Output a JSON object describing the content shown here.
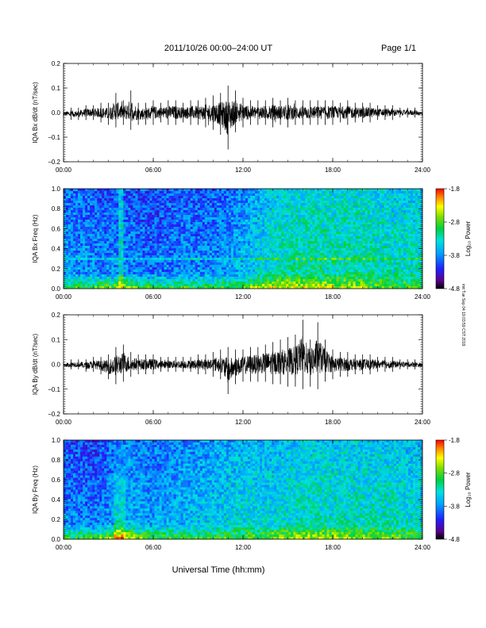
{
  "header": {
    "title": "2011/10/26  00:00–24:00 UT",
    "page": "Page 1/1"
  },
  "side_note": "rmt Tue Sep 04 19:03:59 CST 2019",
  "xlabel": "Universal Time (hh:mm)",
  "x_ticks": [
    "00:00",
    "06:00",
    "12:00",
    "18:00",
    "24:00"
  ],
  "colorbar": {
    "label": "Log₁₀ Power",
    "ticks": [
      "-1.8",
      "-2.8",
      "-3.8",
      "-4.8"
    ],
    "range": [
      -4.8,
      -1.8
    ]
  },
  "chart_data": [
    {
      "type": "line",
      "id": "bx-waveform",
      "ylabel": "IQA Bx dB/dt (nT/sec)",
      "ylim": [
        -0.2,
        0.2
      ],
      "yticks": [
        "0.2",
        "0.1",
        "0.0",
        "−0.1",
        "−0.2"
      ],
      "xlim": [
        0,
        24
      ],
      "x": [
        0,
        0.5,
        1,
        1.5,
        2,
        2.5,
        3,
        3.5,
        4,
        4.5,
        5,
        5.5,
        6,
        6.5,
        7,
        7.5,
        8,
        8.5,
        9,
        9.5,
        10,
        10.5,
        11,
        11.5,
        12,
        12.5,
        13,
        13.5,
        14,
        14.5,
        15,
        15.5,
        16,
        16.5,
        17,
        17.5,
        18,
        18.5,
        19,
        19.5,
        20,
        20.5,
        21,
        21.5,
        22,
        22.5,
        23,
        23.5,
        24
      ],
      "y_max": [
        0.01,
        0.02,
        0.02,
        0.03,
        0.03,
        0.04,
        0.04,
        0.08,
        0.05,
        0.09,
        0.04,
        0.04,
        0.05,
        0.04,
        0.05,
        0.05,
        0.04,
        0.05,
        0.05,
        0.06,
        0.07,
        0.08,
        0.11,
        0.09,
        0.06,
        0.05,
        0.05,
        0.05,
        0.06,
        0.05,
        0.06,
        0.05,
        0.05,
        0.05,
        0.05,
        0.05,
        0.05,
        0.04,
        0.05,
        0.04,
        0.04,
        0.04,
        0.03,
        0.03,
        0.03,
        0.02,
        0.02,
        0.02,
        0.01
      ],
      "y_min": [
        -0.02,
        -0.03,
        -0.03,
        -0.03,
        -0.03,
        -0.04,
        -0.05,
        -0.06,
        -0.05,
        -0.07,
        -0.05,
        -0.05,
        -0.05,
        -0.04,
        -0.05,
        -0.05,
        -0.04,
        -0.05,
        -0.05,
        -0.06,
        -0.07,
        -0.09,
        -0.15,
        -0.08,
        -0.06,
        -0.05,
        -0.05,
        -0.05,
        -0.06,
        -0.05,
        -0.06,
        -0.05,
        -0.05,
        -0.05,
        -0.05,
        -0.05,
        -0.05,
        -0.04,
        -0.05,
        -0.04,
        -0.04,
        -0.04,
        -0.03,
        -0.03,
        -0.03,
        -0.02,
        -0.02,
        -0.02,
        -0.02
      ]
    },
    {
      "type": "heatmap",
      "id": "bx-spectrogram",
      "ylabel": "IQA Bx Freq (Hz)",
      "ylim": [
        0.0,
        1.0
      ],
      "yticks": [
        "1.0",
        "0.8",
        "0.6",
        "0.4",
        "0.2",
        "0.0"
      ],
      "xlim": [
        0,
        24
      ],
      "hours": [
        0,
        2,
        4,
        6,
        8,
        10,
        12,
        14,
        16,
        18,
        20,
        22,
        24
      ],
      "background_log_power": [
        -3.7,
        -3.8,
        -3.8,
        -3.9,
        -3.8,
        -3.8,
        -3.6,
        -3.3,
        -3.2,
        -3.2,
        -3.2,
        -3.3,
        -3.3
      ],
      "lowfreq_log_power": [
        -2.9,
        -2.8,
        -2.6,
        -2.9,
        -2.9,
        -2.9,
        -2.7,
        -2.4,
        -2.4,
        -2.5,
        -2.6,
        -2.8,
        -2.8
      ],
      "features": [
        "vertical line near 03:50",
        "horizontal line near 0.3 Hz"
      ]
    },
    {
      "type": "line",
      "id": "by-waveform",
      "ylabel": "IQA By dB/dt (nT/sec)",
      "ylim": [
        -0.2,
        0.2
      ],
      "yticks": [
        "0.2",
        "0.1",
        "0.0",
        "−0.1",
        "−0.2"
      ],
      "xlim": [
        0,
        24
      ],
      "x": [
        0,
        0.5,
        1,
        1.5,
        2,
        2.5,
        3,
        3.5,
        4,
        4.5,
        5,
        5.5,
        6,
        6.5,
        7,
        7.5,
        8,
        8.5,
        9,
        9.5,
        10,
        10.5,
        11,
        11.5,
        12,
        12.5,
        13,
        13.5,
        14,
        14.5,
        15,
        15.5,
        16,
        16.5,
        17,
        17.5,
        18,
        18.5,
        19,
        19.5,
        20,
        20.5,
        21,
        21.5,
        22,
        22.5,
        23,
        23.5,
        24
      ],
      "y_max": [
        0.01,
        0.02,
        0.02,
        0.02,
        0.03,
        0.03,
        0.04,
        0.07,
        0.08,
        0.05,
        0.04,
        0.04,
        0.04,
        0.03,
        0.03,
        0.03,
        0.03,
        0.03,
        0.04,
        0.04,
        0.05,
        0.06,
        0.07,
        0.06,
        0.06,
        0.07,
        0.07,
        0.08,
        0.09,
        0.1,
        0.11,
        0.12,
        0.18,
        0.1,
        0.17,
        0.1,
        0.06,
        0.05,
        0.05,
        0.04,
        0.04,
        0.04,
        0.03,
        0.03,
        0.03,
        0.02,
        0.02,
        0.02,
        0.01
      ],
      "y_min": [
        -0.02,
        -0.02,
        -0.02,
        -0.03,
        -0.03,
        -0.04,
        -0.06,
        -0.08,
        -0.07,
        -0.05,
        -0.04,
        -0.04,
        -0.04,
        -0.03,
        -0.03,
        -0.03,
        -0.03,
        -0.03,
        -0.04,
        -0.04,
        -0.05,
        -0.06,
        -0.12,
        -0.08,
        -0.07,
        -0.07,
        -0.07,
        -0.07,
        -0.08,
        -0.08,
        -0.09,
        -0.09,
        -0.1,
        -0.09,
        -0.1,
        -0.07,
        -0.06,
        -0.05,
        -0.05,
        -0.04,
        -0.04,
        -0.04,
        -0.03,
        -0.03,
        -0.03,
        -0.02,
        -0.02,
        -0.02,
        -0.02
      ]
    },
    {
      "type": "heatmap",
      "id": "by-spectrogram",
      "ylabel": "IQA By Freq (Hz)",
      "ylim": [
        0.0,
        1.0
      ],
      "yticks": [
        "1.0",
        "0.8",
        "0.6",
        "0.4",
        "0.2",
        "0.0"
      ],
      "xlim": [
        0,
        24
      ],
      "hours": [
        0,
        2,
        4,
        6,
        8,
        10,
        12,
        14,
        16,
        18,
        20,
        22,
        24
      ],
      "background_log_power": [
        -3.8,
        -3.9,
        -3.6,
        -3.7,
        -3.6,
        -3.5,
        -3.4,
        -3.4,
        -3.3,
        -3.3,
        -3.3,
        -3.3,
        -3.4
      ],
      "lowfreq_log_power": [
        -2.9,
        -2.8,
        -2.3,
        -2.8,
        -2.9,
        -2.9,
        -2.8,
        -2.6,
        -2.5,
        -2.5,
        -2.6,
        -2.7,
        -2.8
      ],
      "features": [
        "broadband burst near 03:30-04:00"
      ]
    }
  ]
}
